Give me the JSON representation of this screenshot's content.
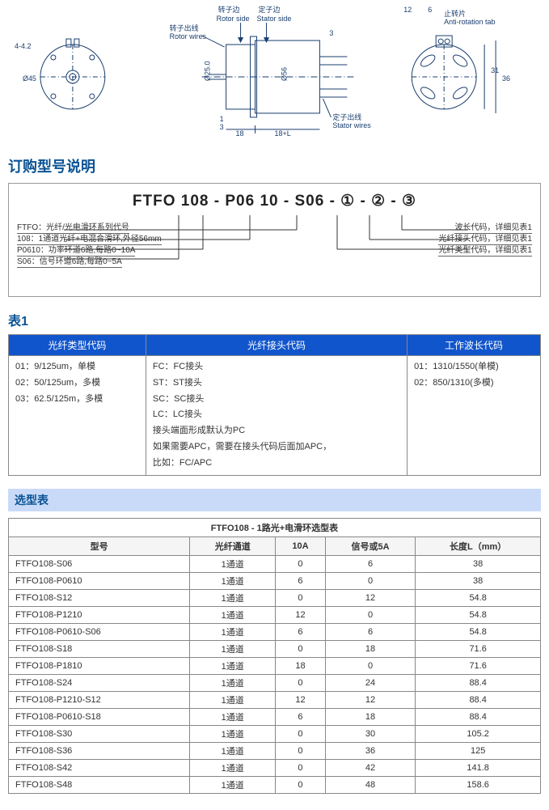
{
  "diagram": {
    "labels": {
      "rotor_side_cn": "转子边",
      "rotor_side_en": "Rotor side",
      "stator_side_cn": "定子边",
      "stator_side_en": "Stator side",
      "rotor_wires_cn": "转子出线",
      "rotor_wires_en": "Rotor wires",
      "stator_wires_cn": "定子出线",
      "stator_wires_en": "Stator wires",
      "anti_rot_cn": "止转片",
      "anti_rot_en": "Anti-rotation tab"
    },
    "dims": {
      "d45": "Ø45",
      "h442": "4-4.2",
      "d25": "Ø25.0",
      "d56": "Ø56",
      "l18": "18",
      "l18L": "18+L",
      "t1": "1",
      "t3": "3",
      "w12": "12",
      "w6": "6",
      "h31": "31",
      "h36": "36",
      "rarrow": "3"
    }
  },
  "order_section": {
    "title": "订购型号说明",
    "partnum": "FTFO 108 - P06 10 - S06 - ① - ② - ③",
    "left_notes": [
      "FTFO：光纤/光电滑环系列代号",
      "108：1通道光纤+电混合滑环,外径56mm",
      "P0610：功率环道6路,每路0~10A",
      "S06：信号环道6路,每路0~5A"
    ],
    "right_notes": [
      "波长代码，详细见表1",
      "光纤接头代码，详细见表1",
      "光纤类型代码，详细见表1"
    ]
  },
  "table1": {
    "title": "表1",
    "headers": [
      "光纤类型代码",
      "光纤接头代码",
      "工作波长代码"
    ],
    "col1": [
      "01：9/125um，单模",
      "02：50/125um，多模",
      "03：62.5/125m，多模"
    ],
    "col2": [
      "FC：FC接头",
      "ST：ST接头",
      "SC：SC接头",
      "LC：LC接头",
      "接头端面形成默认为PC",
      "如果需要APC，需要在接头代码后面加APC，",
      "比如：FC/APC"
    ],
    "col3": [
      "01：1310/1550(单模)",
      "02：850/1310(多模)"
    ]
  },
  "selection": {
    "bar_title": "选型表",
    "caption": "FTFO108 - 1路光+电滑环选型表",
    "headers": [
      "型号",
      "光纤通道",
      "10A",
      "信号或5A",
      "长度L（mm）"
    ],
    "rows": [
      [
        "FTFO108-S06",
        "1通道",
        "0",
        "6",
        "38"
      ],
      [
        "FTFO108-P0610",
        "1通道",
        "6",
        "0",
        "38"
      ],
      [
        "FTFO108-S12",
        "1通道",
        "0",
        "12",
        "54.8"
      ],
      [
        "FTFO108-P1210",
        "1通道",
        "12",
        "0",
        "54.8"
      ],
      [
        "FTFO108-P0610-S06",
        "1通道",
        "6",
        "6",
        "54.8"
      ],
      [
        "FTFO108-S18",
        "1通道",
        "0",
        "18",
        "71.6"
      ],
      [
        "FTFO108-P1810",
        "1通道",
        "18",
        "0",
        "71.6"
      ],
      [
        "FTFO108-S24",
        "1通道",
        "0",
        "24",
        "88.4"
      ],
      [
        "FTFO108-P1210-S12",
        "1通道",
        "12",
        "12",
        "88.4"
      ],
      [
        "FTFO108-P0610-S18",
        "1通道",
        "6",
        "18",
        "88.4"
      ],
      [
        "FTFO108-S30",
        "1通道",
        "0",
        "30",
        "105.2"
      ],
      [
        "FTFO108-S36",
        "1通道",
        "0",
        "36",
        "125"
      ],
      [
        "FTFO108-S42",
        "1通道",
        "0",
        "42",
        "141.8"
      ],
      [
        "FTFO108-S48",
        "1通道",
        "0",
        "48",
        "158.6"
      ]
    ]
  }
}
